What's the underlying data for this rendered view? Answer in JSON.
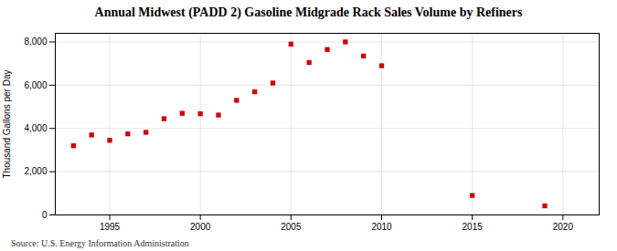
{
  "chart_data": {
    "type": "scatter",
    "title": "Annual Midwest (PADD 2) Gasoline Midgrade Rack Sales Volume by Refiners",
    "ylabel": "Thousand Gallons per Day",
    "source": "Source: U.S. Energy Information Administration",
    "x": [
      1993,
      1994,
      1995,
      1996,
      1997,
      1998,
      1999,
      2000,
      2001,
      2002,
      2003,
      2004,
      2005,
      2006,
      2007,
      2008,
      2009,
      2010,
      2015,
      2019
    ],
    "values": [
      3200,
      3700,
      3450,
      3750,
      3820,
      4450,
      4700,
      4680,
      4620,
      5300,
      5700,
      6100,
      7900,
      7050,
      7650,
      8000,
      7350,
      6900,
      900,
      420
    ],
    "color": "#cc0000",
    "marker": "square",
    "xlim": [
      1992,
      2022
    ],
    "ylim": [
      0,
      8400
    ],
    "xticks": [
      1995,
      2000,
      2005,
      2010,
      2015,
      2020
    ],
    "yticks": [
      0,
      {
        "value": 2000,
        "label": "2,000"
      },
      {
        "value": 4000,
        "label": "4,000"
      },
      {
        "value": 6000,
        "label": "6,000"
      },
      {
        "value": 8000,
        "label": "8,000"
      }
    ],
    "grid": true
  }
}
